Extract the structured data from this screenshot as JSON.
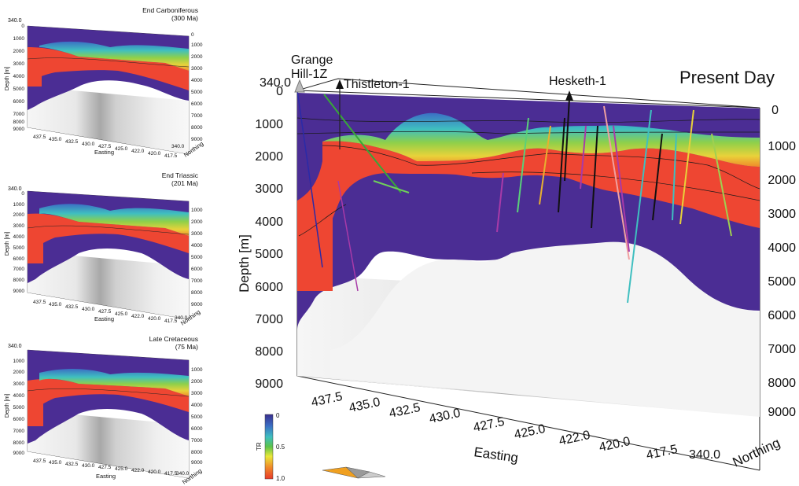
{
  "panels": {
    "carboniferous": {
      "title_line1": "End Carboniferous",
      "title_line2": "(300 Ma)"
    },
    "triassic": {
      "title_line1": "End Triassic",
      "title_line2": "(201 Ma)"
    },
    "cretaceous": {
      "title_line1": "Late Cretaceous",
      "title_line2": "(75 Ma)"
    },
    "present": {
      "title": "Present Day"
    }
  },
  "axes": {
    "depth_label": "Depth [m]",
    "easting_label": "Easting",
    "northing_label": "Northing",
    "northing_tick": "340.0",
    "depth_ticks": [
      "0",
      "1000",
      "2000",
      "3000",
      "4000",
      "5000",
      "6000",
      "7000",
      "8000",
      "9000"
    ],
    "right_depth_ticks": [
      "0",
      "1000",
      "2000",
      "3000",
      "4000",
      "5000",
      "6000",
      "7000",
      "8000",
      "9000"
    ],
    "easting_ticks": [
      "437.5",
      "435.0",
      "432.5",
      "430.0",
      "427.5",
      "425.0",
      "422.0",
      "420.0",
      "417.5"
    ],
    "top_left_tick": "340.0"
  },
  "wells": {
    "grange_line1": "Grange",
    "grange_line2": "Hill-1Z",
    "thistleton": "Thistleton-1",
    "hesketh": "Hesketh-1"
  },
  "colorbar": {
    "label": "TR",
    "ticks": [
      "0",
      "0.5",
      "1.0"
    ],
    "colors": [
      "#3a2f8f",
      "#3b6fc4",
      "#3fbfc0",
      "#5cc24a",
      "#e8e83a",
      "#f08a2a",
      "#e83a2a"
    ]
  },
  "colors": {
    "basement": "#4b2d94",
    "mature": "#ee4632",
    "below": "#f2f2f2"
  }
}
